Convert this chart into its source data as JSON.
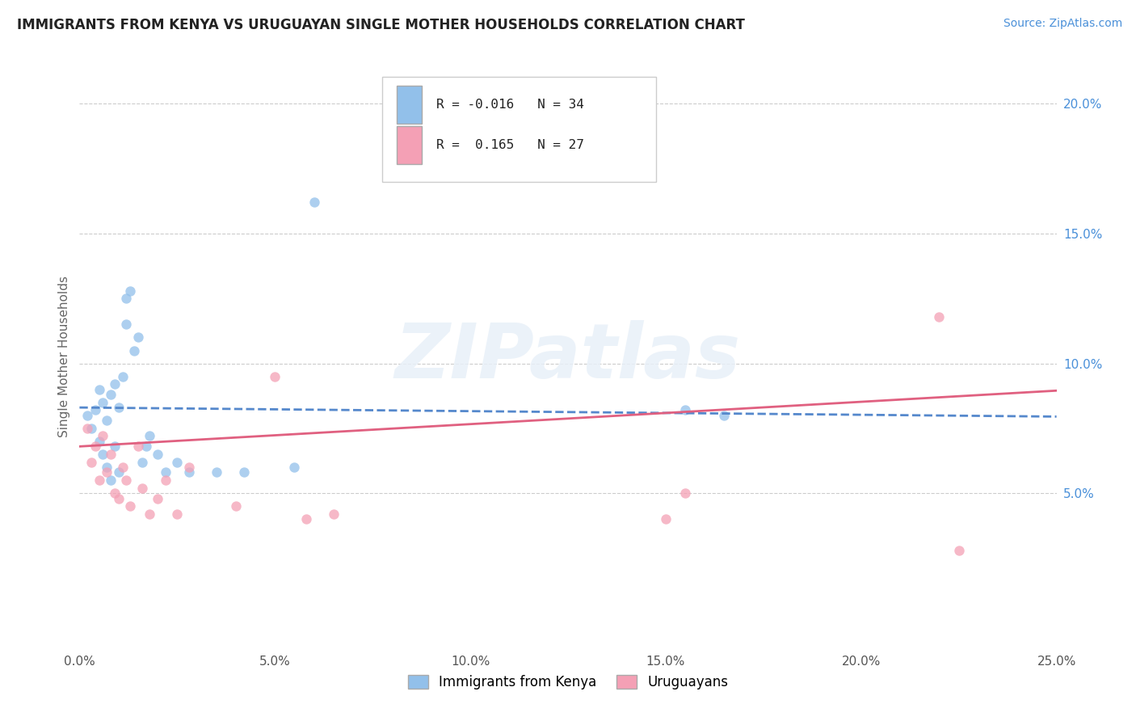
{
  "title": "IMMIGRANTS FROM KENYA VS URUGUAYAN SINGLE MOTHER HOUSEHOLDS CORRELATION CHART",
  "source": "Source: ZipAtlas.com",
  "ylabel": "Single Mother Households",
  "xlabel": "",
  "xlim": [
    0.0,
    0.25
  ],
  "ylim": [
    -0.01,
    0.215
  ],
  "plot_ylim": [
    -0.01,
    0.215
  ],
  "xticks": [
    0.0,
    0.05,
    0.1,
    0.15,
    0.2,
    0.25
  ],
  "yticks": [
    0.05,
    0.1,
    0.15,
    0.2
  ],
  "xticklabels": [
    "0.0%",
    "5.0%",
    "10.0%",
    "15.0%",
    "20.0%",
    "25.0%"
  ],
  "yticklabels": [
    "5.0%",
    "10.0%",
    "15.0%",
    "20.0%"
  ],
  "legend_entries": [
    {
      "label": "Immigrants from Kenya",
      "color": "#92c0ea",
      "R": -0.016,
      "N": 34
    },
    {
      "label": "Uruguayans",
      "color": "#f4a0b5",
      "R": 0.165,
      "N": 27
    }
  ],
  "series1_color": "#92c0ea",
  "series2_color": "#f4a0b5",
  "trendline1_color": "#5588cc",
  "trendline2_color": "#e06080",
  "kenya_x": [
    0.002,
    0.003,
    0.004,
    0.005,
    0.005,
    0.006,
    0.006,
    0.007,
    0.007,
    0.008,
    0.008,
    0.009,
    0.009,
    0.01,
    0.01,
    0.011,
    0.012,
    0.012,
    0.013,
    0.014,
    0.015,
    0.016,
    0.017,
    0.018,
    0.02,
    0.022,
    0.025,
    0.028,
    0.035,
    0.042,
    0.055,
    0.06,
    0.155,
    0.165
  ],
  "kenya_y": [
    0.08,
    0.075,
    0.082,
    0.09,
    0.07,
    0.085,
    0.065,
    0.078,
    0.06,
    0.088,
    0.055,
    0.092,
    0.068,
    0.083,
    0.058,
    0.095,
    0.125,
    0.115,
    0.128,
    0.105,
    0.11,
    0.062,
    0.068,
    0.072,
    0.065,
    0.058,
    0.062,
    0.058,
    0.058,
    0.058,
    0.06,
    0.162,
    0.082,
    0.08
  ],
  "uruguayan_x": [
    0.002,
    0.003,
    0.004,
    0.005,
    0.006,
    0.007,
    0.008,
    0.009,
    0.01,
    0.011,
    0.012,
    0.013,
    0.015,
    0.016,
    0.018,
    0.02,
    0.022,
    0.025,
    0.028,
    0.04,
    0.05,
    0.058,
    0.065,
    0.15,
    0.155,
    0.22,
    0.225
  ],
  "uruguayan_y": [
    0.075,
    0.062,
    0.068,
    0.055,
    0.072,
    0.058,
    0.065,
    0.05,
    0.048,
    0.06,
    0.055,
    0.045,
    0.068,
    0.052,
    0.042,
    0.048,
    0.055,
    0.042,
    0.06,
    0.045,
    0.095,
    0.04,
    0.042,
    0.04,
    0.05,
    0.118,
    0.028
  ]
}
